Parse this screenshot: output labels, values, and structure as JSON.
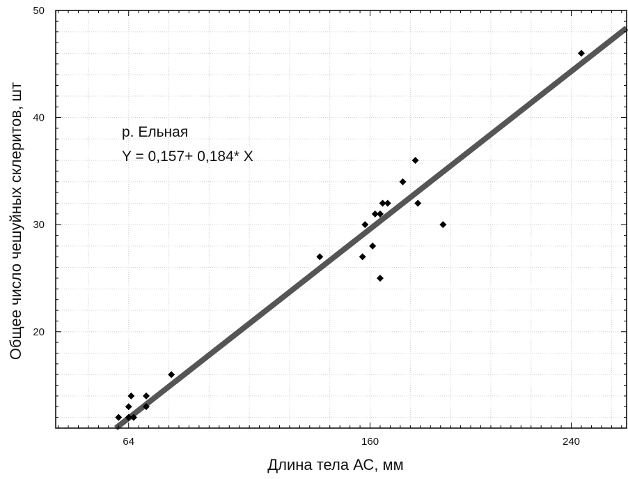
{
  "chart_data": {
    "type": "scatter",
    "title": "",
    "xlabel": "Длина тела  АС, мм",
    "ylabel": "Общее число чешуйных склеритов, шт",
    "xlim": [
      35,
      262
    ],
    "ylim": [
      11,
      50
    ],
    "xticks": [
      64,
      160,
      240
    ],
    "yticks": [
      20,
      30,
      40,
      50
    ],
    "x_tick_labels": [
      "64",
      "160",
      "240"
    ],
    "y_tick_labels": [
      "20",
      "30",
      "40",
      "50"
    ],
    "grid": true,
    "legend": "none",
    "annotations": [
      "р. Ельная",
      "Y = 0,157+  0,184* X"
    ],
    "regression": {
      "intercept": 0.157,
      "slope": 0.184
    },
    "points": [
      {
        "x": 60,
        "y": 12
      },
      {
        "x": 64,
        "y": 12
      },
      {
        "x": 66,
        "y": 12
      },
      {
        "x": 64,
        "y": 13
      },
      {
        "x": 71,
        "y": 13
      },
      {
        "x": 65,
        "y": 14
      },
      {
        "x": 71,
        "y": 14
      },
      {
        "x": 81,
        "y": 16
      },
      {
        "x": 140,
        "y": 27
      },
      {
        "x": 157,
        "y": 27
      },
      {
        "x": 161,
        "y": 28
      },
      {
        "x": 158,
        "y": 30
      },
      {
        "x": 162,
        "y": 31
      },
      {
        "x": 164,
        "y": 31
      },
      {
        "x": 165,
        "y": 32
      },
      {
        "x": 167,
        "y": 32
      },
      {
        "x": 164,
        "y": 25
      },
      {
        "x": 173,
        "y": 34
      },
      {
        "x": 178,
        "y": 36
      },
      {
        "x": 179,
        "y": 32
      },
      {
        "x": 189,
        "y": 30
      },
      {
        "x": 244,
        "y": 46
      }
    ],
    "colors": {
      "points": "#000000",
      "line": "#555555",
      "grid": "#cfcfcf",
      "frame": "#000000"
    }
  }
}
